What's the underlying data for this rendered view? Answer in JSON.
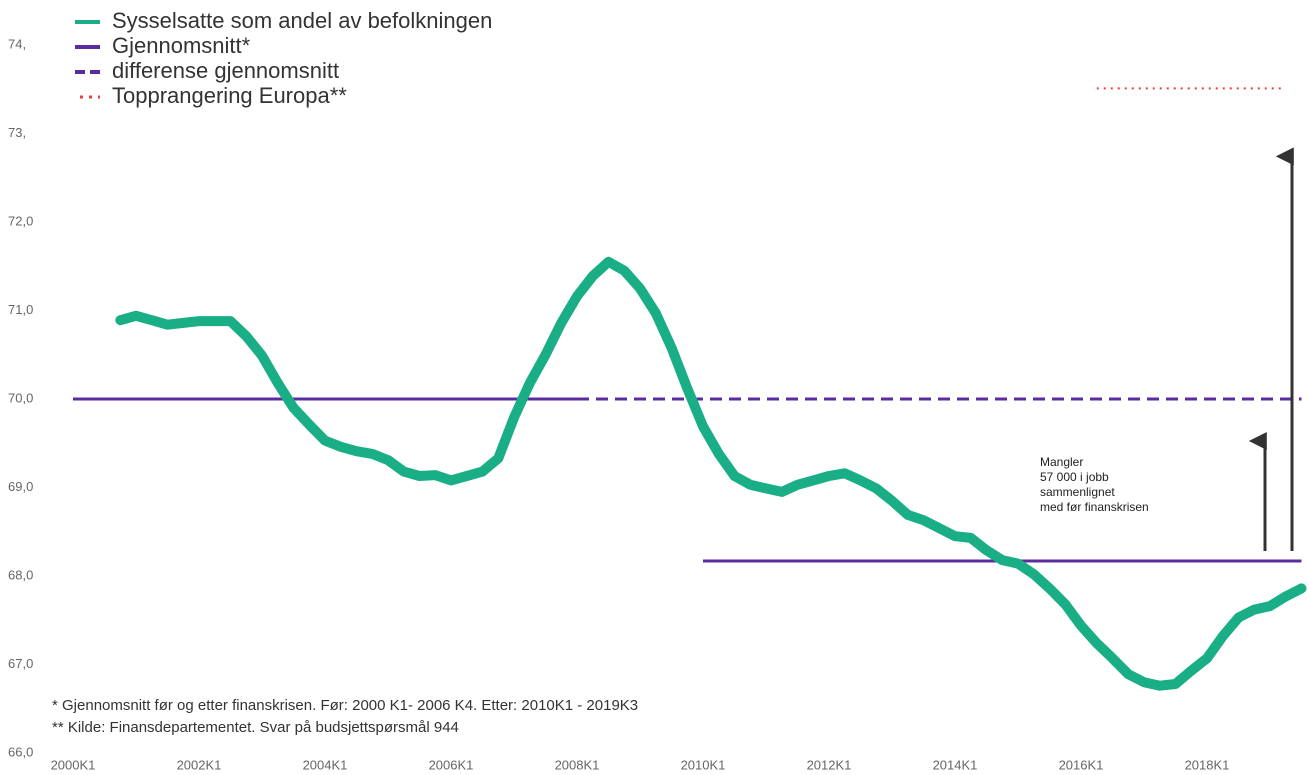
{
  "chart_data": {
    "type": "line",
    "categories": [
      "2000K4",
      "2001K1",
      "2001K2",
      "2001K3",
      "2001K4",
      "2002K1",
      "2002K2",
      "2002K3",
      "2002K4",
      "2003K1",
      "2003K2",
      "2003K3",
      "2003K4",
      "2004K1",
      "2004K2",
      "2004K3",
      "2004K4",
      "2005K1",
      "2005K2",
      "2005K3",
      "2005K4",
      "2006K1",
      "2006K2",
      "2006K3",
      "2006K4",
      "2007K1",
      "2007K2",
      "2007K3",
      "2007K4",
      "2008K1",
      "2008K2",
      "2008K3",
      "2008K4",
      "2009K1",
      "2009K2",
      "2009K3",
      "2009K4",
      "2010K1",
      "2010K2",
      "2010K3",
      "2010K4",
      "2011K1",
      "2011K2",
      "2011K3",
      "2011K4",
      "2012K1",
      "2012K2",
      "2012K3",
      "2012K4",
      "2013K1",
      "2013K2",
      "2013K3",
      "2013K4",
      "2014K1",
      "2014K2",
      "2014K3",
      "2014K4",
      "2015K1",
      "2015K2",
      "2015K3",
      "2015K4",
      "2016K1",
      "2016K2",
      "2016K3",
      "2016K4",
      "2017K1",
      "2017K2",
      "2017K3",
      "2017K4",
      "2018K1",
      "2018K2",
      "2018K3",
      "2018K4",
      "2019K1",
      "2019K2",
      "2019K3"
    ],
    "series": [
      {
        "name": "Sysselsatte som andel av befolkningen",
        "color": "#1aae87",
        "values": [
          70.89,
          70.94,
          70.89,
          70.84,
          70.86,
          70.88,
          70.88,
          70.88,
          70.71,
          70.49,
          70.18,
          69.9,
          69.71,
          69.53,
          69.46,
          69.41,
          69.38,
          69.31,
          69.18,
          69.13,
          69.14,
          69.08,
          69.13,
          69.18,
          69.33,
          69.79,
          70.18,
          70.5,
          70.86,
          71.16,
          71.39,
          71.55,
          71.45,
          71.25,
          70.97,
          70.58,
          70.12,
          69.69,
          69.38,
          69.13,
          69.03,
          68.99,
          68.95,
          69.03,
          69.08,
          69.13,
          69.16,
          69.08,
          68.99,
          68.85,
          68.69,
          68.63,
          68.54,
          68.45,
          68.43,
          68.29,
          68.18,
          68.14,
          68.02,
          67.86,
          67.68,
          67.44,
          67.24,
          67.07,
          66.89,
          66.8,
          66.76,
          66.78,
          66.93,
          67.07,
          67.32,
          67.53,
          67.62,
          67.66,
          67.77,
          67.86
        ]
      }
    ],
    "reference_lines": [
      {
        "name": "Gjennomsnitt*",
        "color": "#5a2ca0",
        "style": "solid",
        "segments": [
          {
            "value": 70.0,
            "from": "2000K1",
            "to": "2008K1"
          },
          {
            "value": 68.17,
            "from": "2010K1",
            "to": "2019K3"
          }
        ]
      },
      {
        "name": "differense gjennomsnitt",
        "color": "#5a2ca0",
        "style": "dashed",
        "segments": [
          {
            "value": 70.0,
            "from": "2008K1",
            "to": "2019K3"
          }
        ]
      },
      {
        "name": "Topprangering Europa**",
        "color": "#e8403a",
        "style": "dotted",
        "segments": [
          {
            "value": 73.51,
            "from": "2016K2",
            "to": "2019K2"
          }
        ]
      }
    ],
    "annotation": [
      "Mangler",
      "57 000 i jobb",
      "sammenlignet",
      "med før finanskrisen"
    ],
    "footnotes": [
      "* Gjennomsnitt før og etter finanskrisen. Før: 2000 K1- 2006 K4. Etter: 2010K1 - 2019K3",
      "** Kilde: Finansdepartementet. Svar på budsjettspørsmål 944"
    ],
    "ylim": [
      66,
      74
    ],
    "yticks": [
      {
        "value": 66,
        "label": "66,0"
      },
      {
        "value": 67,
        "label": "67,0"
      },
      {
        "value": 68,
        "label": "68,0"
      },
      {
        "value": 69,
        "label": "69,0"
      },
      {
        "value": 70,
        "label": "70,0"
      },
      {
        "value": 71,
        "label": "71,0"
      },
      {
        "value": 72,
        "label": "72,0"
      },
      {
        "value": 73,
        "label": "73,"
      },
      {
        "value": 74,
        "label": "74,"
      }
    ],
    "xticks": [
      "2000K1",
      "2002K1",
      "2004K1",
      "2006K1",
      "2008K1",
      "2010K1",
      "2012K1",
      "2014K1",
      "2016K1",
      "2018K1"
    ],
    "grid": false
  }
}
